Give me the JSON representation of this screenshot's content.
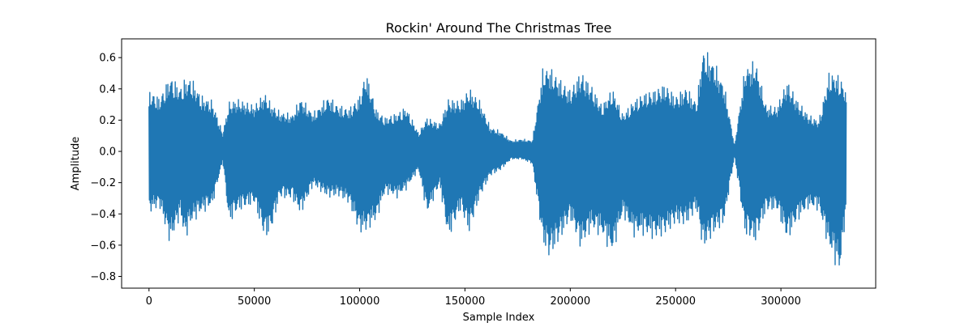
{
  "chart_data": {
    "type": "line",
    "title": "Rockin' Around The Christmas Tree",
    "xlabel": "Sample Index",
    "ylabel": "Amplitude",
    "xlim": [
      -13000,
      345000
    ],
    "ylim": [
      -0.875,
      0.72
    ],
    "grid": false,
    "x_ticks": [
      0,
      50000,
      100000,
      150000,
      200000,
      250000,
      300000
    ],
    "x_tick_labels": [
      "0",
      "50000",
      "100000",
      "150000",
      "200000",
      "250000",
      "300000"
    ],
    "y_ticks": [
      -0.8,
      -0.6,
      -0.4,
      -0.2,
      0.0,
      0.2,
      0.4,
      0.6
    ],
    "y_tick_labels": [
      "−0.8",
      "−0.6",
      "−0.4",
      "−0.2",
      "0.0",
      "0.2",
      "0.4",
      "0.6"
    ],
    "series_color": "#1f77b4",
    "series": [
      {
        "x": [
          0,
          5000,
          10000,
          15000,
          17000,
          20000,
          25000,
          30000,
          35000,
          38000,
          42000,
          50000,
          55000,
          58000,
          62000,
          68000,
          72000,
          78000,
          85000,
          90000,
          95000,
          100000,
          103000,
          108000,
          112000,
          118000,
          122000,
          128000,
          132000,
          138000,
          142000,
          148000,
          152000,
          157000,
          162000,
          167000,
          172000,
          177000,
          182000,
          187000,
          190000,
          195000,
          200000,
          205000,
          210000,
          215000,
          220000,
          225000,
          230000,
          235000,
          240000,
          245000,
          250000,
          255000,
          260000,
          263000,
          268000,
          273000,
          278000,
          283000,
          288000,
          293000,
          298000,
          303000,
          308000,
          313000,
          318000,
          323000,
          328000,
          331000
        ],
        "y_max": [
          0.4,
          0.35,
          0.49,
          0.42,
          0.47,
          0.48,
          0.36,
          0.33,
          0.12,
          0.32,
          0.34,
          0.3,
          0.38,
          0.31,
          0.26,
          0.24,
          0.35,
          0.25,
          0.36,
          0.3,
          0.28,
          0.36,
          0.52,
          0.27,
          0.22,
          0.25,
          0.29,
          0.12,
          0.22,
          0.18,
          0.34,
          0.33,
          0.41,
          0.33,
          0.16,
          0.13,
          0.07,
          0.08,
          0.07,
          0.54,
          0.55,
          0.47,
          0.4,
          0.52,
          0.43,
          0.3,
          0.41,
          0.24,
          0.33,
          0.38,
          0.4,
          0.44,
          0.36,
          0.42,
          0.32,
          0.67,
          0.59,
          0.44,
          0.04,
          0.55,
          0.59,
          0.3,
          0.29,
          0.46,
          0.33,
          0.24,
          0.2,
          0.52,
          0.49,
          0.4
        ],
        "y_min": [
          -0.4,
          -0.36,
          -0.6,
          -0.42,
          -0.58,
          -0.47,
          -0.4,
          -0.36,
          -0.06,
          -0.47,
          -0.39,
          -0.34,
          -0.57,
          -0.52,
          -0.3,
          -0.31,
          -0.41,
          -0.22,
          -0.3,
          -0.29,
          -0.34,
          -0.53,
          -0.52,
          -0.45,
          -0.27,
          -0.3,
          -0.25,
          -0.12,
          -0.41,
          -0.22,
          -0.57,
          -0.38,
          -0.53,
          -0.3,
          -0.16,
          -0.12,
          -0.05,
          -0.05,
          -0.08,
          -0.6,
          -0.69,
          -0.58,
          -0.44,
          -0.63,
          -0.51,
          -0.55,
          -0.67,
          -0.41,
          -0.55,
          -0.54,
          -0.57,
          -0.54,
          -0.47,
          -0.48,
          -0.38,
          -0.64,
          -0.54,
          -0.47,
          -0.03,
          -0.54,
          -0.59,
          -0.39,
          -0.38,
          -0.58,
          -0.45,
          -0.37,
          -0.38,
          -0.64,
          -0.8,
          -0.38
        ]
      }
    ]
  }
}
